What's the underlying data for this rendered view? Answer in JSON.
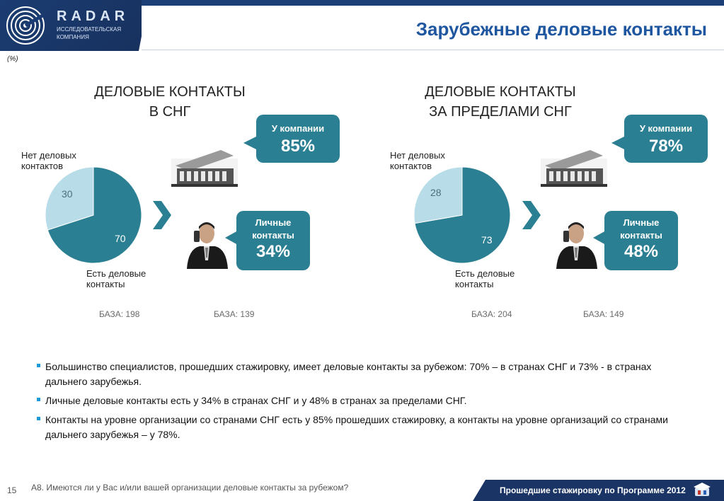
{
  "header": {
    "brand": "RADAR",
    "brand_sub_1": "ИССЛЕДОВАТЕЛЬСКАЯ",
    "brand_sub_2": "КОМПАНИЯ",
    "title": "Зарубежные деловые контакты",
    "unit_note": "(%)"
  },
  "colors": {
    "primary": "#2b7f93",
    "secondary": "#b9dde8",
    "header_blue": "#1f56a0",
    "bullet": "#1e9ad6"
  },
  "panels": [
    {
      "heading_line1": "ДЕЛОВЫЕ КОНТАКТЫ",
      "heading_line2": "В СНГ",
      "label_no_1": "Нет деловых",
      "label_no_2": "контактов",
      "label_yes_1": "Есть деловые",
      "label_yes_2": "контакты",
      "company_label": "У компании",
      "company_value": "85%",
      "personal_label_1": "Личные",
      "personal_label_2": "контакты",
      "personal_value": "34%",
      "base_1": "БАЗА: 198",
      "base_2": "БАЗА: 139"
    },
    {
      "heading_line1": "ДЕЛОВЫЕ КОНТАКТЫ",
      "heading_line2": "ЗА ПРЕДЕЛАМИ СНГ",
      "label_no_1": "Нет деловых",
      "label_no_2": "контактов",
      "label_yes_1": "Есть деловые",
      "label_yes_2": "контакты",
      "company_label": "У компании",
      "company_value": "78%",
      "personal_label_1": "Личные",
      "personal_label_2": "контакты",
      "personal_value": "48%",
      "base_1": "БАЗА: 204",
      "base_2": "БАЗА: 149"
    }
  ],
  "chart_data": [
    {
      "type": "pie",
      "categories": [
        "Есть деловые контакты",
        "Нет деловых контактов"
      ],
      "values": [
        70,
        30
      ]
    },
    {
      "type": "pie",
      "categories": [
        "Есть деловые контакты",
        "Нет деловых контактов"
      ],
      "values": [
        73,
        28
      ]
    }
  ],
  "bullets": [
    "Большинство специалистов, прошедших стажировку, имеет деловые контакты за рубежом: 70% – в странах СНГ и 73% - в странах дальнего зарубежья.",
    "Личные деловые контакты есть у 34% в странах СНГ и у 48% в странах за пределами СНГ.",
    "Контакты на уровне организации со странами СНГ есть у 85% прошедших стажировку, а контакты на уровне организаций со странами дальнего зарубежья – у 78%."
  ],
  "footer": {
    "page_number": "15",
    "question": "А8. Имеются ли у Вас и/или вашей организации деловые контакты за рубежом?",
    "program": "Прошедшие стажировку по Программе 2012"
  }
}
